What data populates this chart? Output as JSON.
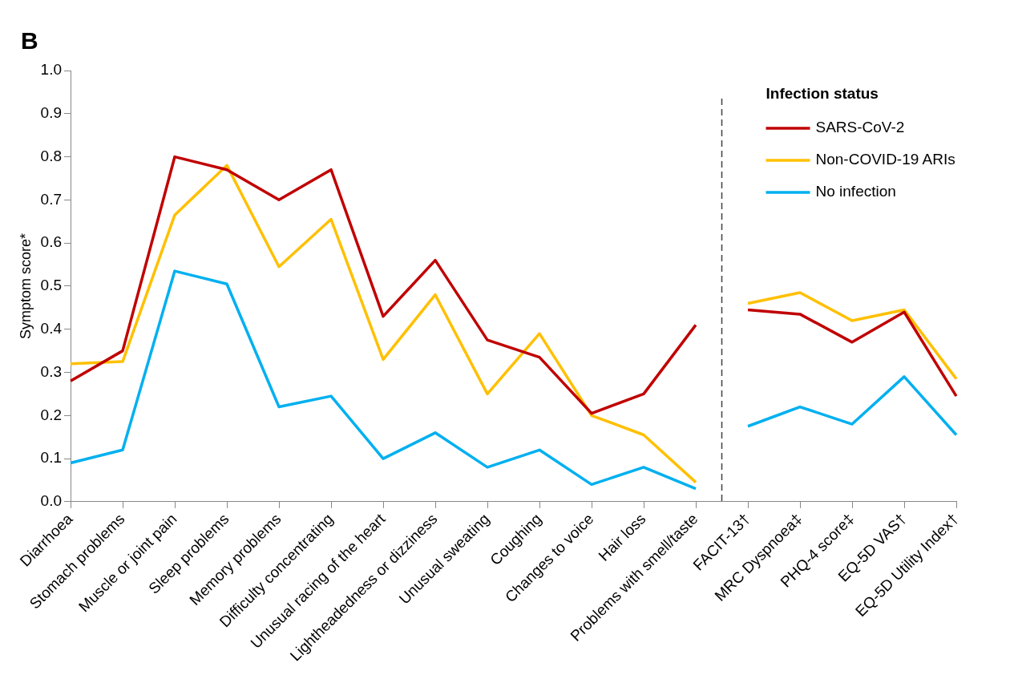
{
  "chart_data": {
    "type": "line",
    "ylabel": "Symptom score*",
    "legend_title": "Infection status",
    "legend": "top right",
    "annotations": [
      "B"
    ],
    "categories": [
      "Diarrhoea",
      "Stomach problems",
      "Muscle or joint pain",
      "Sleep problems",
      "Memory problems",
      "Difficulty concentrating",
      "Unusual racing of the heart",
      "Lightheadedness or dizziness",
      "Unusual sweating",
      "Coughing",
      "Changes to voice",
      "Hair loss",
      "Problems with smell/taste",
      "FACIT-13†",
      "MRC Dyspnoea‡",
      "PHQ-4 score‡",
      "EQ-5D VAS†",
      "EQ-5D Utility Index†"
    ],
    "series": [
      {
        "name": "SARS-CoV-2",
        "color": "#c00000",
        "values": [
          0.28,
          0.35,
          0.8,
          0.77,
          0.7,
          0.77,
          0.43,
          0.56,
          0.375,
          0.335,
          0.205,
          0.25,
          0.41,
          0.445,
          0.435,
          0.37,
          0.44,
          0.245
        ]
      },
      {
        "name": "Non-COVID-19 ARIs",
        "color": "#ffc000",
        "values": [
          0.32,
          0.325,
          0.665,
          0.78,
          0.545,
          0.655,
          0.33,
          0.48,
          0.25,
          0.39,
          0.2,
          0.155,
          0.045,
          0.46,
          0.485,
          0.42,
          0.445,
          0.285
        ]
      },
      {
        "name": "No infection",
        "color": "#00b0f0",
        "values": [
          0.09,
          0.12,
          0.535,
          0.505,
          0.22,
          0.245,
          0.1,
          0.16,
          0.08,
          0.12,
          0.04,
          0.08,
          0.03,
          0.175,
          0.22,
          0.18,
          0.29,
          0.155
        ]
      }
    ],
    "ylim": [
      0,
      1
    ],
    "yticks": [
      {
        "value": 0,
        "label": "0.0"
      },
      0.1,
      0.2,
      0.3,
      0.4,
      0.5,
      0.6,
      0.7,
      0.8,
      0.9,
      {
        "value": 1,
        "label": "1.0"
      }
    ],
    "marker": "none",
    "line_style": "solid"
  }
}
